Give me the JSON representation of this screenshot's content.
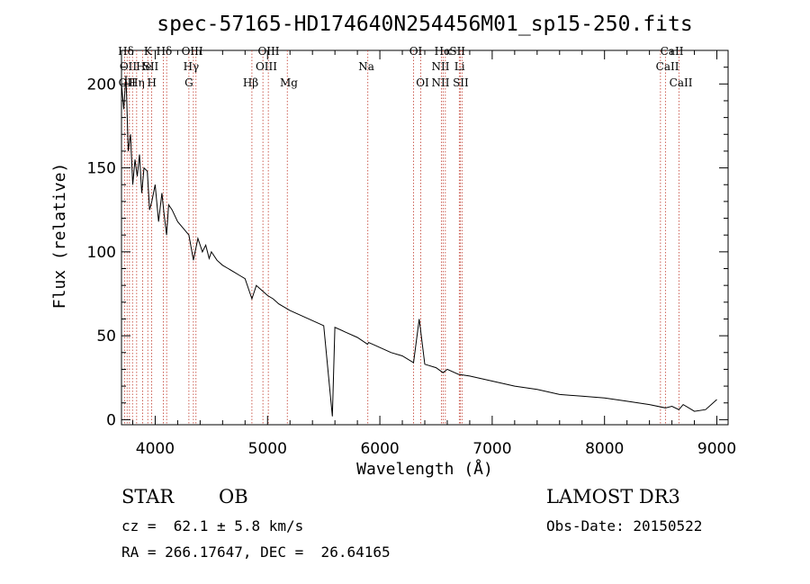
{
  "chart_data": {
    "type": "line",
    "title": "spec-57165-HD174640N254456M01_sp15-250.fits",
    "xlabel": "Wavelength (Å)",
    "ylabel": "Flux (relative)",
    "xlim": [
      3700,
      9100
    ],
    "ylim": [
      -3,
      220
    ],
    "xticks": [
      4000,
      5000,
      6000,
      7000,
      8000,
      9000
    ],
    "yticks": [
      0,
      50,
      100,
      150,
      200
    ],
    "spectrum": {
      "name": "flux",
      "x": [
        3700,
        3720,
        3740,
        3760,
        3780,
        3800,
        3820,
        3840,
        3860,
        3880,
        3900,
        3930,
        3950,
        3970,
        4000,
        4030,
        4060,
        4080,
        4101,
        4120,
        4150,
        4200,
        4250,
        4300,
        4340,
        4380,
        4420,
        4450,
        4480,
        4500,
        4550,
        4600,
        4650,
        4700,
        4750,
        4800,
        4861,
        4900,
        4950,
        5000,
        5050,
        5100,
        5200,
        5300,
        5400,
        5500,
        5577,
        5600,
        5700,
        5800,
        5890,
        5900,
        6000,
        6100,
        6200,
        6300,
        6350,
        6400,
        6500,
        6563,
        6600,
        6700,
        6800,
        7000,
        7200,
        7400,
        7600,
        7800,
        8000,
        8200,
        8400,
        8542,
        8600,
        8662,
        8700,
        8800,
        8900,
        9000
      ],
      "y": [
        200,
        185,
        205,
        160,
        170,
        140,
        155,
        145,
        158,
        135,
        150,
        148,
        125,
        130,
        140,
        118,
        135,
        122,
        110,
        128,
        125,
        118,
        114,
        110,
        95,
        108,
        100,
        104,
        96,
        100,
        95,
        92,
        90,
        88,
        86,
        84,
        72,
        80,
        77,
        74,
        72,
        69,
        65,
        62,
        59,
        56,
        2,
        55,
        52,
        49,
        45,
        46,
        43,
        40,
        38,
        34,
        60,
        33,
        31,
        28,
        30,
        27,
        26,
        23,
        20,
        18,
        15,
        14,
        13,
        11,
        9,
        7,
        8,
        6,
        9,
        5,
        6,
        12
      ]
    },
    "lines": {
      "top_row": [
        "Hδ",
        "K",
        "Hδ",
        "OIII",
        "OIII",
        "OI",
        "Hα",
        "SII",
        "CaII"
      ],
      "mid_row": [
        "OII",
        "He",
        "SII",
        "Hγ",
        "OIII",
        "Na",
        "NII",
        "Li",
        "CaII"
      ],
      "bottom_row": [
        "OII",
        "Hη",
        "H",
        "G",
        "Hβ",
        "Mg",
        "OI",
        "NII",
        "SII",
        "CaII"
      ],
      "wavelengths": [
        3727,
        3750,
        3771,
        3798,
        3835,
        3889,
        3934,
        3969,
        4072,
        4102,
        4300,
        4340,
        4363,
        4861,
        4959,
        5007,
        5176,
        5893,
        6300,
        6364,
        6548,
        6563,
        6583,
        6707,
        6716,
        6731,
        8498,
        8542,
        8662
      ]
    }
  },
  "info": {
    "class": "STAR",
    "subclass": "OB",
    "survey": "LAMOST DR3",
    "redshift": "cz =  62.1 ± 5.8 km/s",
    "obs_date": "Obs-Date: 20150522",
    "coords": "RA = 266.17647, DEC =  26.64165"
  }
}
